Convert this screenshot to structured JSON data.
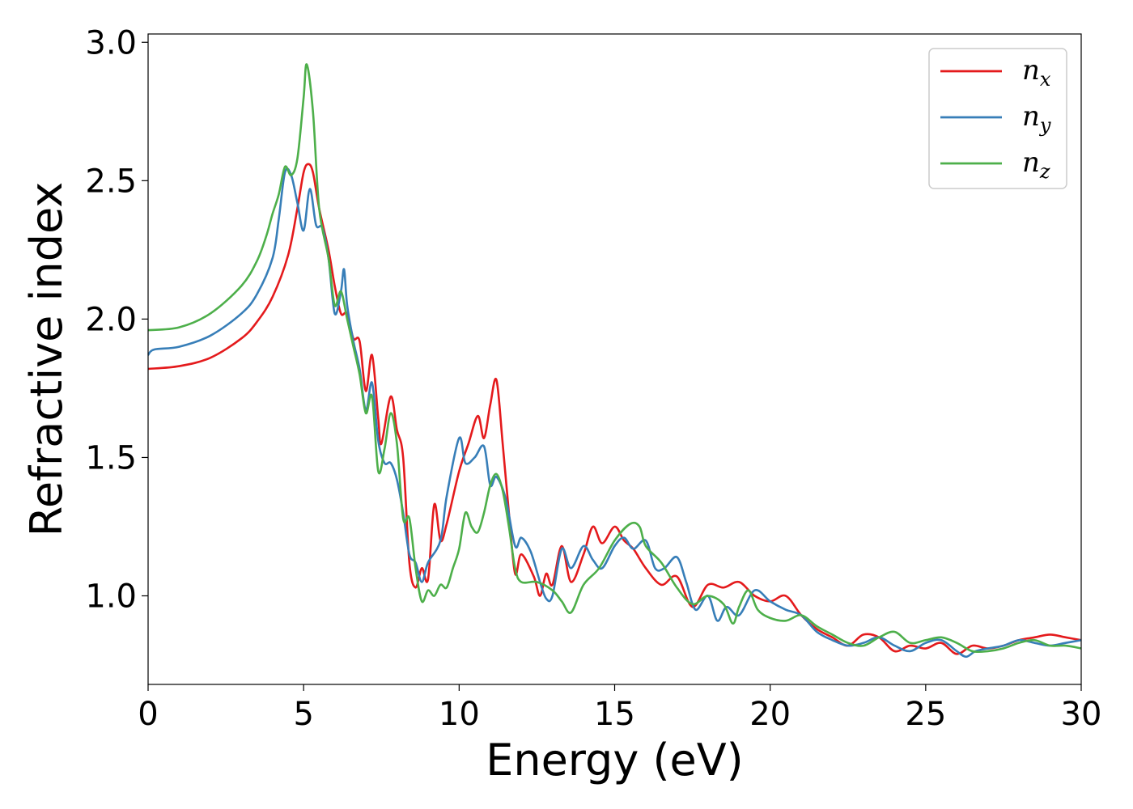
{
  "chart_data": {
    "type": "line",
    "title": "",
    "xlabel": "Energy (eV)",
    "ylabel": "Refractive index",
    "xlim": [
      0,
      30
    ],
    "ylim": [
      0.68,
      3.03
    ],
    "xticks": [
      0,
      5,
      10,
      15,
      20,
      25,
      30
    ],
    "yticks": [
      1.0,
      1.5,
      2.0,
      2.5,
      3.0
    ],
    "xtick_labels": [
      "0",
      "5",
      "10",
      "15",
      "20",
      "25",
      "30"
    ],
    "ytick_labels": [
      "1.0",
      "1.5",
      "2.0",
      "2.5",
      "3.0"
    ],
    "grid": false,
    "legend_position": "top-right",
    "series": [
      {
        "name": "n",
        "subscript": "x",
        "color": "#e41a1c",
        "points": [
          [
            0,
            1.82
          ],
          [
            1,
            1.83
          ],
          [
            2,
            1.86
          ],
          [
            3,
            1.93
          ],
          [
            3.5,
            1.99
          ],
          [
            4,
            2.08
          ],
          [
            4.5,
            2.23
          ],
          [
            4.8,
            2.4
          ],
          [
            5.0,
            2.53
          ],
          [
            5.15,
            2.56
          ],
          [
            5.3,
            2.53
          ],
          [
            5.5,
            2.4
          ],
          [
            5.8,
            2.25
          ],
          [
            6.0,
            2.12
          ],
          [
            6.2,
            2.02
          ],
          [
            6.4,
            2.02
          ],
          [
            6.6,
            1.93
          ],
          [
            6.8,
            1.92
          ],
          [
            7.0,
            1.74
          ],
          [
            7.2,
            1.87
          ],
          [
            7.4,
            1.64
          ],
          [
            7.5,
            1.55
          ],
          [
            7.8,
            1.72
          ],
          [
            8.0,
            1.6
          ],
          [
            8.2,
            1.5
          ],
          [
            8.4,
            1.12
          ],
          [
            8.6,
            1.03
          ],
          [
            8.8,
            1.1
          ],
          [
            9.0,
            1.06
          ],
          [
            9.2,
            1.33
          ],
          [
            9.4,
            1.2
          ],
          [
            9.6,
            1.26
          ],
          [
            10.0,
            1.45
          ],
          [
            10.3,
            1.55
          ],
          [
            10.6,
            1.65
          ],
          [
            10.8,
            1.57
          ],
          [
            11.0,
            1.69
          ],
          [
            11.2,
            1.78
          ],
          [
            11.4,
            1.55
          ],
          [
            11.6,
            1.3
          ],
          [
            11.8,
            1.08
          ],
          [
            12.0,
            1.15
          ],
          [
            12.4,
            1.07
          ],
          [
            12.6,
            1.0
          ],
          [
            12.8,
            1.08
          ],
          [
            13.0,
            1.04
          ],
          [
            13.3,
            1.18
          ],
          [
            13.6,
            1.05
          ],
          [
            14.0,
            1.15
          ],
          [
            14.3,
            1.25
          ],
          [
            14.6,
            1.19
          ],
          [
            15.0,
            1.25
          ],
          [
            15.3,
            1.2
          ],
          [
            15.6,
            1.17
          ],
          [
            16.0,
            1.1
          ],
          [
            16.5,
            1.04
          ],
          [
            17.0,
            1.07
          ],
          [
            17.5,
            0.96
          ],
          [
            18.0,
            1.04
          ],
          [
            18.5,
            1.03
          ],
          [
            19.0,
            1.05
          ],
          [
            19.5,
            1.0
          ],
          [
            20.0,
            0.98
          ],
          [
            20.5,
            1.0
          ],
          [
            21.0,
            0.93
          ],
          [
            21.5,
            0.88
          ],
          [
            22.0,
            0.85
          ],
          [
            22.5,
            0.82
          ],
          [
            23.0,
            0.86
          ],
          [
            23.5,
            0.85
          ],
          [
            24.0,
            0.8
          ],
          [
            24.5,
            0.82
          ],
          [
            25.0,
            0.81
          ],
          [
            25.5,
            0.83
          ],
          [
            26.0,
            0.79
          ],
          [
            26.5,
            0.82
          ],
          [
            27.0,
            0.81
          ],
          [
            27.5,
            0.82
          ],
          [
            28.0,
            0.84
          ],
          [
            28.5,
            0.85
          ],
          [
            29.0,
            0.86
          ],
          [
            29.5,
            0.85
          ],
          [
            30,
            0.84
          ]
        ]
      },
      {
        "name": "n",
        "subscript": "y",
        "color": "#377eb8",
        "points": [
          [
            0,
            1.87
          ],
          [
            0.2,
            1.89
          ],
          [
            1,
            1.9
          ],
          [
            2,
            1.94
          ],
          [
            3,
            2.02
          ],
          [
            3.5,
            2.09
          ],
          [
            4,
            2.22
          ],
          [
            4.2,
            2.36
          ],
          [
            4.4,
            2.53
          ],
          [
            4.6,
            2.52
          ],
          [
            4.8,
            2.42
          ],
          [
            5.0,
            2.32
          ],
          [
            5.2,
            2.47
          ],
          [
            5.4,
            2.34
          ],
          [
            5.6,
            2.33
          ],
          [
            5.8,
            2.22
          ],
          [
            6.0,
            2.02
          ],
          [
            6.2,
            2.1
          ],
          [
            6.3,
            2.18
          ],
          [
            6.4,
            2.05
          ],
          [
            6.6,
            1.92
          ],
          [
            6.8,
            1.82
          ],
          [
            7.0,
            1.67
          ],
          [
            7.2,
            1.77
          ],
          [
            7.4,
            1.56
          ],
          [
            7.6,
            1.48
          ],
          [
            7.8,
            1.48
          ],
          [
            8.0,
            1.42
          ],
          [
            8.2,
            1.3
          ],
          [
            8.4,
            1.15
          ],
          [
            8.6,
            1.12
          ],
          [
            8.8,
            1.05
          ],
          [
            9.0,
            1.12
          ],
          [
            9.4,
            1.2
          ],
          [
            9.6,
            1.36
          ],
          [
            10.0,
            1.57
          ],
          [
            10.2,
            1.48
          ],
          [
            10.5,
            1.5
          ],
          [
            10.8,
            1.54
          ],
          [
            11.0,
            1.4
          ],
          [
            11.2,
            1.43
          ],
          [
            11.5,
            1.35
          ],
          [
            11.8,
            1.18
          ],
          [
            12.0,
            1.21
          ],
          [
            12.3,
            1.16
          ],
          [
            12.6,
            1.05
          ],
          [
            12.8,
            0.99
          ],
          [
            13.0,
            1.0
          ],
          [
            13.3,
            1.17
          ],
          [
            13.6,
            1.1
          ],
          [
            14.0,
            1.18
          ],
          [
            14.3,
            1.13
          ],
          [
            14.6,
            1.1
          ],
          [
            15.0,
            1.18
          ],
          [
            15.3,
            1.21
          ],
          [
            15.6,
            1.17
          ],
          [
            16.0,
            1.2
          ],
          [
            16.3,
            1.1
          ],
          [
            16.6,
            1.1
          ],
          [
            17.0,
            1.14
          ],
          [
            17.3,
            1.05
          ],
          [
            17.6,
            0.95
          ],
          [
            18.0,
            1.0
          ],
          [
            18.3,
            0.91
          ],
          [
            18.6,
            0.96
          ],
          [
            19.0,
            0.93
          ],
          [
            19.5,
            1.02
          ],
          [
            20.0,
            0.98
          ],
          [
            20.5,
            0.95
          ],
          [
            21.0,
            0.93
          ],
          [
            21.5,
            0.87
          ],
          [
            22.0,
            0.84
          ],
          [
            22.5,
            0.82
          ],
          [
            23.0,
            0.83
          ],
          [
            23.5,
            0.85
          ],
          [
            24.0,
            0.82
          ],
          [
            24.5,
            0.8
          ],
          [
            25.0,
            0.83
          ],
          [
            25.5,
            0.84
          ],
          [
            26.0,
            0.8
          ],
          [
            26.3,
            0.78
          ],
          [
            26.6,
            0.8
          ],
          [
            27.0,
            0.81
          ],
          [
            27.5,
            0.82
          ],
          [
            28.0,
            0.84
          ],
          [
            28.5,
            0.83
          ],
          [
            29.0,
            0.82
          ],
          [
            29.5,
            0.83
          ],
          [
            30,
            0.84
          ]
        ]
      },
      {
        "name": "n",
        "subscript": "z",
        "color": "#4daf4a",
        "points": [
          [
            0,
            1.96
          ],
          [
            1,
            1.97
          ],
          [
            2,
            2.02
          ],
          [
            3,
            2.12
          ],
          [
            3.5,
            2.21
          ],
          [
            3.8,
            2.3
          ],
          [
            4.0,
            2.38
          ],
          [
            4.2,
            2.45
          ],
          [
            4.4,
            2.55
          ],
          [
            4.6,
            2.52
          ],
          [
            4.8,
            2.58
          ],
          [
            5.0,
            2.8
          ],
          [
            5.1,
            2.92
          ],
          [
            5.3,
            2.75
          ],
          [
            5.5,
            2.4
          ],
          [
            5.8,
            2.22
          ],
          [
            6.0,
            2.05
          ],
          [
            6.2,
            2.1
          ],
          [
            6.4,
            2.0
          ],
          [
            6.6,
            1.9
          ],
          [
            6.8,
            1.8
          ],
          [
            7.0,
            1.66
          ],
          [
            7.2,
            1.72
          ],
          [
            7.4,
            1.45
          ],
          [
            7.6,
            1.53
          ],
          [
            7.8,
            1.66
          ],
          [
            8.0,
            1.55
          ],
          [
            8.2,
            1.28
          ],
          [
            8.4,
            1.28
          ],
          [
            8.6,
            1.1
          ],
          [
            8.8,
            0.98
          ],
          [
            9.0,
            1.02
          ],
          [
            9.2,
            1.0
          ],
          [
            9.4,
            1.04
          ],
          [
            9.6,
            1.03
          ],
          [
            9.8,
            1.1
          ],
          [
            10.0,
            1.17
          ],
          [
            10.2,
            1.3
          ],
          [
            10.4,
            1.25
          ],
          [
            10.6,
            1.23
          ],
          [
            10.8,
            1.3
          ],
          [
            11.0,
            1.4
          ],
          [
            11.2,
            1.44
          ],
          [
            11.4,
            1.38
          ],
          [
            11.6,
            1.25
          ],
          [
            11.8,
            1.1
          ],
          [
            12.0,
            1.05
          ],
          [
            12.5,
            1.05
          ],
          [
            13.0,
            1.02
          ],
          [
            13.3,
            0.98
          ],
          [
            13.6,
            0.94
          ],
          [
            14.0,
            1.04
          ],
          [
            14.5,
            1.1
          ],
          [
            15.0,
            1.2
          ],
          [
            15.5,
            1.26
          ],
          [
            15.8,
            1.25
          ],
          [
            16.0,
            1.18
          ],
          [
            16.5,
            1.12
          ],
          [
            17.0,
            1.03
          ],
          [
            17.5,
            0.97
          ],
          [
            18.0,
            1.0
          ],
          [
            18.5,
            0.97
          ],
          [
            18.8,
            0.9
          ],
          [
            19.0,
            0.96
          ],
          [
            19.3,
            1.02
          ],
          [
            19.6,
            0.95
          ],
          [
            20.0,
            0.92
          ],
          [
            20.5,
            0.91
          ],
          [
            21.0,
            0.93
          ],
          [
            21.5,
            0.89
          ],
          [
            22.0,
            0.86
          ],
          [
            22.5,
            0.83
          ],
          [
            23.0,
            0.82
          ],
          [
            23.5,
            0.85
          ],
          [
            24.0,
            0.87
          ],
          [
            24.5,
            0.83
          ],
          [
            25.0,
            0.84
          ],
          [
            25.5,
            0.85
          ],
          [
            26.0,
            0.83
          ],
          [
            26.5,
            0.8
          ],
          [
            27.0,
            0.8
          ],
          [
            27.5,
            0.81
          ],
          [
            28.0,
            0.83
          ],
          [
            28.5,
            0.84
          ],
          [
            29.0,
            0.82
          ],
          [
            29.5,
            0.82
          ],
          [
            30,
            0.81
          ]
        ]
      }
    ]
  }
}
